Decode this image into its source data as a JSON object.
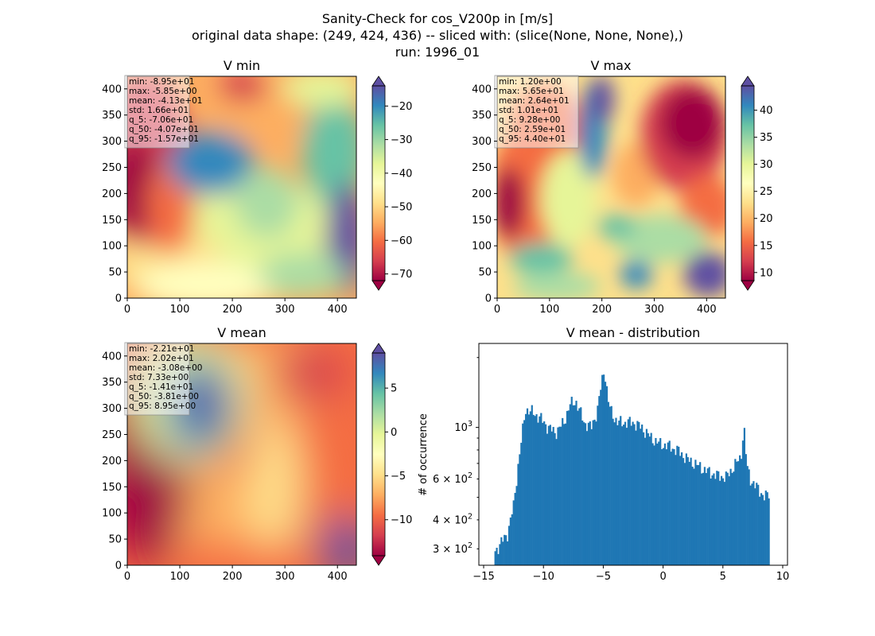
{
  "figure": {
    "suptitle": [
      "Sanity-Check for cos_V200p in [m/s]",
      "original data shape: (249, 424, 436) -- sliced with: (slice(None, None, None),)",
      "run: 1996_01"
    ]
  },
  "colormap": "Spectral",
  "chart_data": [
    {
      "type": "heatmap",
      "title": "V min",
      "xlim": [
        0,
        436
      ],
      "ylim": [
        0,
        424
      ],
      "xticks": [
        0,
        100,
        200,
        300,
        400
      ],
      "yticks": [
        0,
        50,
        100,
        150,
        200,
        250,
        300,
        350,
        400
      ],
      "colorbar": {
        "min": -72,
        "max": -14,
        "ticks": [
          -70,
          -60,
          -50,
          -40,
          -30,
          -20
        ],
        "extend": "both"
      },
      "stats": [
        "min: -8.95e+01",
        "max: -5.85e+00",
        "mean: -4.13e+01",
        "std: 1.66e+01",
        "q_5: -7.06e+01",
        "q_50: -4.07e+01",
        "q_95: -1.57e+01"
      ]
    },
    {
      "type": "heatmap",
      "title": "V max",
      "xlim": [
        0,
        436
      ],
      "ylim": [
        0,
        424
      ],
      "xticks": [
        0,
        100,
        200,
        300,
        400
      ],
      "yticks": [
        0,
        50,
        100,
        150,
        200,
        250,
        300,
        350,
        400
      ],
      "colorbar": {
        "min": 8.5,
        "max": 44.5,
        "ticks": [
          10,
          15,
          20,
          25,
          30,
          35,
          40
        ],
        "extend": "both"
      },
      "stats": [
        "min: 1.20e+00",
        "max: 5.65e+01",
        "mean: 2.64e+01",
        "std: 1.01e+01",
        "q_5: 9.28e+00",
        "q_50: 2.59e+01",
        "q_95: 4.40e+01"
      ]
    },
    {
      "type": "heatmap",
      "title": "V mean",
      "xlim": [
        0,
        436
      ],
      "ylim": [
        0,
        424
      ],
      "xticks": [
        0,
        100,
        200,
        300,
        400
      ],
      "yticks": [
        0,
        50,
        100,
        150,
        200,
        250,
        300,
        350,
        400
      ],
      "colorbar": {
        "min": -14.1,
        "max": 9.0,
        "ticks": [
          -10,
          -5,
          0,
          5
        ],
        "extend": "both"
      },
      "stats": [
        "min: -2.21e+01",
        "max: 2.02e+01",
        "mean: -3.08e+00",
        "std: 7.33e+00",
        "q_5: -1.41e+01",
        "q_50: -3.81e+00",
        "q_95: 8.95e+00"
      ]
    },
    {
      "type": "bar",
      "title": "V mean - distribution",
      "ylabel": "# of occurrence",
      "xlabel": "",
      "yscale": "log",
      "xlim": [
        -15.4,
        10.4
      ],
      "ylim": [
        255,
        2300
      ],
      "xticks": [
        -15,
        -10,
        -5,
        0,
        5,
        10
      ],
      "xtick_labels": [
        "−15",
        "−10",
        "−5",
        "0",
        "5",
        "10"
      ],
      "ytick_labels": [
        {
          "value": 300,
          "base": "3 × 10",
          "exp": "2"
        },
        {
          "value": 400,
          "base": "4 × 10",
          "exp": "2"
        },
        {
          "value": 600,
          "base": "6 × 10",
          "exp": "2"
        },
        {
          "value": 1000,
          "base": "10",
          "exp": "3"
        }
      ],
      "bar_color": "#1f77b4",
      "x": [
        -14.1,
        -13.0,
        -12.5,
        -12.1,
        -11.5,
        -10.8,
        -10.3,
        -9.6,
        -9.0,
        -8.3,
        -7.8,
        -7.3,
        -6.6,
        -6.0,
        -5.5,
        -5.15,
        -4.9,
        -4.6,
        -4.3,
        -3.8,
        -3.2,
        -2.5,
        -1.8,
        -1.0,
        -0.3,
        0.5,
        1.3,
        2.0,
        2.8,
        3.6,
        4.5,
        5.3,
        6.0,
        6.5,
        6.75,
        7.0,
        7.3,
        7.7,
        8.0,
        8.5,
        8.9
      ],
      "y": [
        290,
        350,
        460,
        700,
        1200,
        1150,
        1100,
        1000,
        950,
        1050,
        1250,
        1300,
        1050,
        1000,
        1180,
        1550,
        1800,
        1300,
        1150,
        1050,
        1050,
        1050,
        1000,
        900,
        850,
        830,
        790,
        730,
        690,
        650,
        620,
        610,
        690,
        740,
        1020,
        680,
        600,
        560,
        540,
        500,
        520
      ]
    }
  ]
}
